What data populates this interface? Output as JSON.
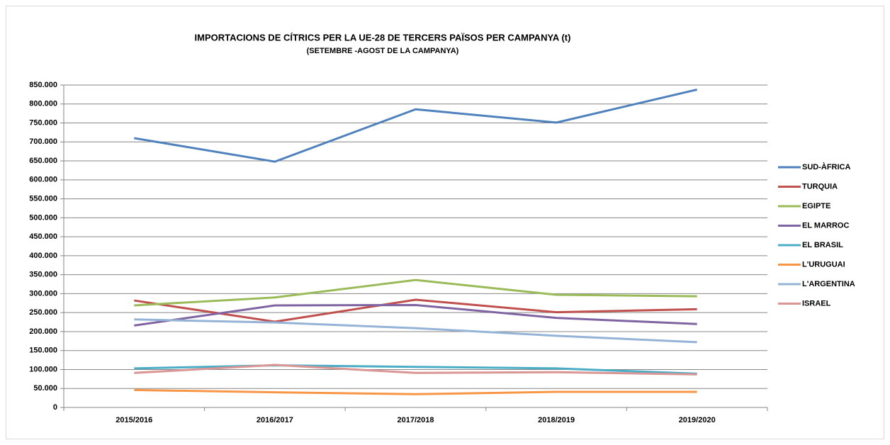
{
  "chart_data": {
    "type": "line",
    "title": "IMPORTACIONS DE CÍTRICS PER LA UE-28 DE TERCERS PAÏSOS PER CAMPANYA  (t)",
    "subtitle": "(SETEMBRE -AGOST DE LA CAMPANYA)",
    "categories": [
      "2015/2016",
      "2016/2017",
      "2017/2018",
      "2018/2019",
      "2019/2020"
    ],
    "series": [
      {
        "name": "SUD-ÀFRICA",
        "color": "#4f81bd",
        "values": [
          710000,
          648000,
          786000,
          751000,
          838000
        ]
      },
      {
        "name": "TURQUIA",
        "color": "#c0504d",
        "values": [
          282000,
          226000,
          284000,
          251000,
          259000
        ]
      },
      {
        "name": "EGIPTE",
        "color": "#9bbb59",
        "values": [
          269000,
          290000,
          336000,
          297000,
          293000
        ]
      },
      {
        "name": "EL MARROC",
        "color": "#8064a2",
        "values": [
          216000,
          269000,
          270000,
          236000,
          220000
        ]
      },
      {
        "name": "EL BRASIL",
        "color": "#4bacc6",
        "values": [
          103000,
          111000,
          107000,
          103000,
          89000
        ]
      },
      {
        "name": "L'URUGUAI",
        "color": "#f79646",
        "values": [
          46000,
          40000,
          35000,
          41000,
          41000
        ]
      },
      {
        "name": "L'ARGENTINA",
        "color": "#95b3d7",
        "values": [
          232000,
          224000,
          209000,
          189000,
          172000
        ]
      },
      {
        "name": "ISRAEL",
        "color": "#d99694",
        "values": [
          91000,
          112000,
          91000,
          93000,
          87000
        ]
      }
    ],
    "ylim": [
      0,
      850000
    ],
    "yticks": [
      0,
      {
        "value": 50000,
        "label": "50.000"
      },
      {
        "value": 100000,
        "label": "100.000"
      },
      {
        "value": 150000,
        "label": "150.000"
      },
      {
        "value": 200000,
        "label": "200.000"
      },
      {
        "value": 250000,
        "label": "250.000"
      },
      {
        "value": 300000,
        "label": "300.000"
      },
      {
        "value": 350000,
        "label": "350.000"
      },
      {
        "value": 400000,
        "label": "400.000"
      },
      {
        "value": 450000,
        "label": "450.000"
      },
      {
        "value": 500000,
        "label": "500.000"
      },
      {
        "value": 550000,
        "label": "550.000"
      },
      {
        "value": 600000,
        "label": "600.000"
      },
      {
        "value": 650000,
        "label": "650.000"
      },
      {
        "value": 700000,
        "label": "700.000"
      },
      {
        "value": 750000,
        "label": "750.000"
      },
      {
        "value": 800000,
        "label": "800.000"
      },
      {
        "value": 850000,
        "label": "850.000"
      }
    ],
    "grid": true,
    "legend": "right"
  }
}
